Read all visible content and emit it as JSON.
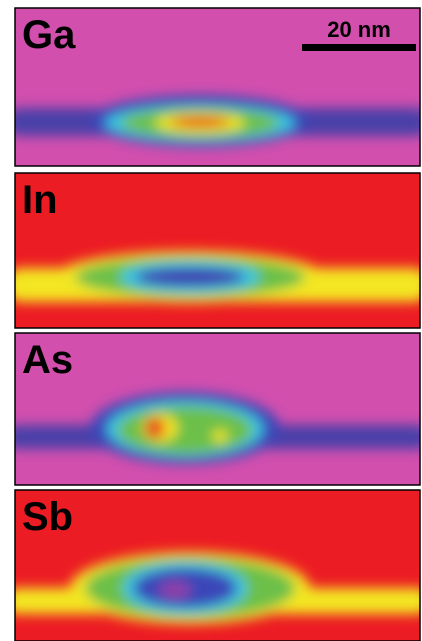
{
  "panels": [
    {
      "label": "Ga"
    },
    {
      "label": "In"
    },
    {
      "label": "As"
    },
    {
      "label": "Sb"
    }
  ],
  "scale_bar": {
    "label": "20 nm"
  }
}
